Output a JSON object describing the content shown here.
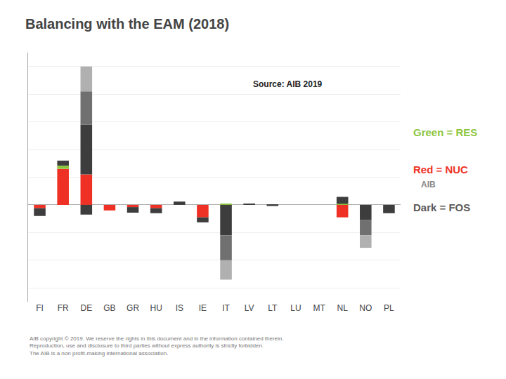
{
  "chart_data": {
    "type": "bar",
    "title": "Balancing with the EAM (2018)",
    "categories": [
      "FI",
      "FR",
      "DE",
      "GB",
      "GR",
      "HU",
      "IS",
      "IE",
      "IT",
      "LV",
      "LT",
      "LU",
      "MT",
      "NL",
      "NO",
      "PL"
    ],
    "series": [
      {
        "color": "#ee3124",
        "values": [
          0,
          1.3,
          1.1,
          0,
          0,
          0,
          0,
          0,
          0,
          0,
          0,
          0,
          0,
          0,
          0,
          0
        ]
      },
      {
        "color": "#8dc63f",
        "values": [
          0,
          0.12,
          0,
          0,
          0,
          0,
          0,
          0,
          0.04,
          0,
          0,
          0,
          0,
          0.04,
          0,
          0
        ]
      },
      {
        "color": "#3d3d3d",
        "values": [
          0,
          0.18,
          1.8,
          0,
          0,
          0,
          0.12,
          0,
          0,
          0.04,
          0,
          0,
          0,
          0.25,
          0,
          0
        ]
      },
      {
        "color": "#707070",
        "values": [
          0,
          0,
          1.2,
          0,
          0,
          0,
          0,
          0,
          0,
          0,
          0,
          0,
          0,
          0,
          0,
          0
        ]
      },
      {
        "color": "#b0b0b0",
        "values": [
          0,
          0,
          0.9,
          0,
          0,
          0,
          0,
          0,
          0,
          0,
          0,
          0,
          0,
          0,
          0,
          0
        ]
      },
      {
        "color": "#ee3124",
        "values": [
          -0.12,
          0,
          0,
          -0.2,
          -0.08,
          -0.12,
          0,
          -0.45,
          0,
          0,
          0,
          0,
          0,
          -0.45,
          0,
          0
        ]
      },
      {
        "color": "#3d3d3d",
        "values": [
          -0.28,
          0,
          -0.35,
          0,
          -0.2,
          -0.18,
          0,
          -0.18,
          -1.1,
          0,
          -0.04,
          0,
          0,
          0,
          -0.55,
          -0.3
        ]
      },
      {
        "color": "#707070",
        "values": [
          0,
          0,
          0,
          0,
          0,
          0,
          0,
          0,
          -0.9,
          0,
          0,
          0,
          0,
          0,
          -0.55,
          0
        ]
      },
      {
        "color": "#b0b0b0",
        "values": [
          0,
          0,
          0,
          0,
          0,
          0,
          0,
          0,
          -0.7,
          0,
          0,
          0,
          0,
          0,
          -0.45,
          0
        ]
      }
    ],
    "stacked": true,
    "ylim": [
      -3.5,
      5.5
    ],
    "yticks": [
      -3,
      -2,
      -1,
      0,
      1,
      2,
      3,
      4,
      5
    ],
    "grid": true,
    "tick_labels": "x",
    "annotations": [
      {
        "text": "Source: AIB 2019"
      },
      {
        "text": "Green = RES",
        "color": "#8dc63f"
      },
      {
        "text": "Red = NUC",
        "color": "#ee3124"
      },
      {
        "text": "Dark = FOS",
        "color": "#5a5a5a"
      },
      {
        "text": "AIB copyright © 2019. We reserve the rights in this document and in the information contained therein.\nReproduction, use and disclosure to third parties without express authority is strictly forbidden.\nThe AIB is a non profit-making international association."
      },
      {
        "text": "AIB"
      }
    ]
  }
}
